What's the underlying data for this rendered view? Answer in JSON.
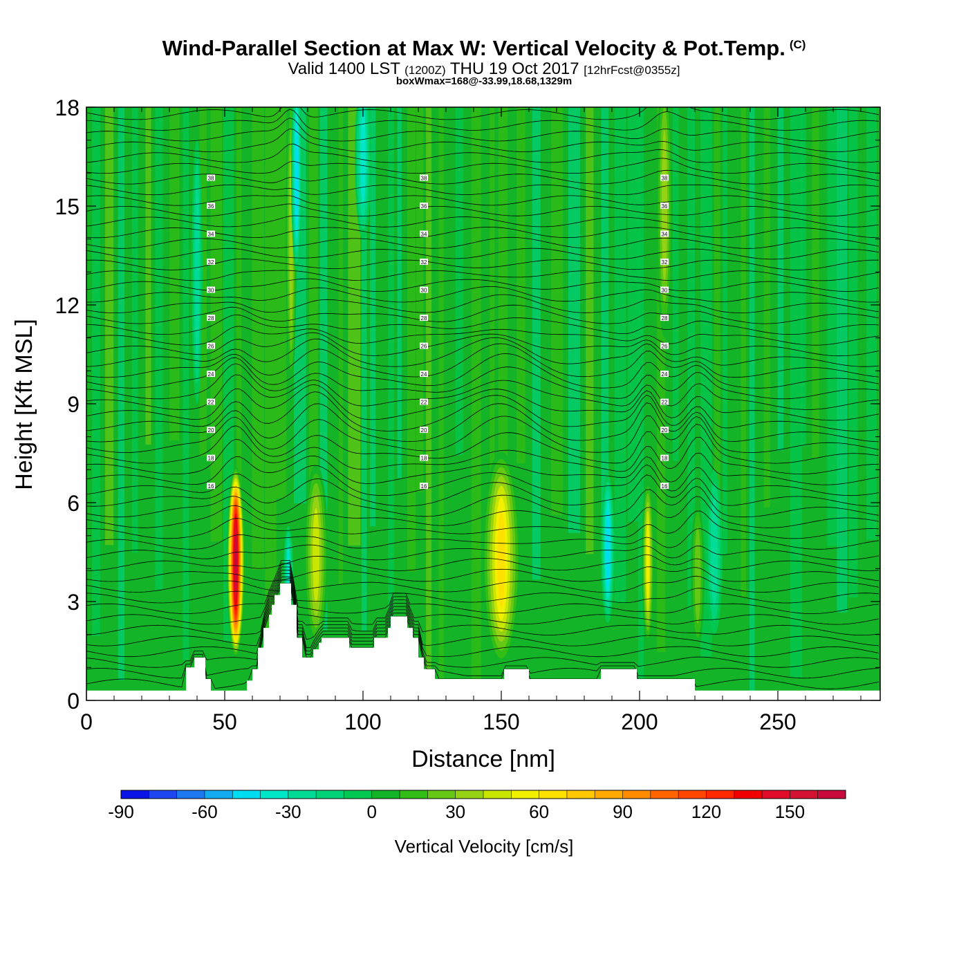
{
  "title": "Wind-Parallel Section at Max W: Vertical Velocity & Pot.Temp.",
  "copyright": "(C)",
  "subtitle_main": "Valid 1400 LST",
  "subtitle_z": "(1200Z)",
  "subtitle_date": "THU 19 Oct 2017",
  "subtitle_fcst": "[12hrFcst@0355z]",
  "subtitle2": "boxWmax=168@-33.99,18.68,1329m",
  "chart_data": {
    "type": "heatmap",
    "xlabel": "Distance [nm]",
    "ylabel": "Height [Kft MSL]",
    "xlim": [
      0,
      287
    ],
    "ylim": [
      0,
      18
    ],
    "xticks": [
      0,
      50,
      100,
      150,
      200,
      250
    ],
    "yticks": [
      0,
      3,
      6,
      9,
      12,
      15,
      18
    ],
    "colorbar": {
      "label": "Vertical Velocity [cm/s]",
      "ticks": [
        -90,
        -60,
        -30,
        0,
        30,
        60,
        90,
        120,
        150
      ],
      "min": -90,
      "max": 170,
      "step": 10,
      "colors": [
        "#0a14e6",
        "#1e46f0",
        "#1e78f0",
        "#14aaf0",
        "#00dcf0",
        "#00e6c8",
        "#00dc96",
        "#00d278",
        "#00c850",
        "#14b428",
        "#32be14",
        "#64c814",
        "#96d214",
        "#c8e600",
        "#f0f000",
        "#ffe100",
        "#ffc800",
        "#ffaa00",
        "#ff8c00",
        "#ff6400",
        "#ff4600",
        "#ff2800",
        "#f00000",
        "#e10a28",
        "#d21432",
        "#c80a3c"
      ]
    },
    "updrafts": [
      {
        "x": 54,
        "z_center": 4.2,
        "width": 3.2,
        "height": 5.8,
        "w": 168
      },
      {
        "x": 83,
        "z_center": 4.4,
        "width": 4.5,
        "height": 5.5,
        "w": 45
      },
      {
        "x": 150,
        "z_center": 4.3,
        "width": 7,
        "height": 6.5,
        "w": 62
      },
      {
        "x": 203,
        "z_center": 4.2,
        "width": 2.2,
        "height": 5,
        "w": 55
      },
      {
        "x": 221,
        "z_center": 3.8,
        "width": 2.5,
        "height": 4.5,
        "w": 30
      },
      {
        "x": 74,
        "z_center": 14,
        "width": 2,
        "height": 9,
        "w": 40
      },
      {
        "x": 209,
        "z_center": 15,
        "width": 3,
        "height": 8,
        "w": 40
      }
    ],
    "downdrafts": [
      {
        "x": 188.5,
        "z_center": 4.6,
        "width": 2.5,
        "height": 4.5,
        "w": -50
      },
      {
        "x": 73,
        "z_center": 3.8,
        "width": 1.8,
        "height": 3,
        "w": -35
      },
      {
        "x": 76,
        "z_center": 16,
        "width": 2,
        "height": 6,
        "w": -45
      },
      {
        "x": 100,
        "z_center": 16.5,
        "width": 3,
        "height": 5,
        "w": -35
      },
      {
        "x": 40,
        "z_center": 13,
        "width": 2,
        "height": 8,
        "w": -25
      },
      {
        "x": 227,
        "z_center": 4.5,
        "width": 3,
        "height": 5,
        "w": -25
      }
    ],
    "terrain_kft": [
      [
        0,
        0.3
      ],
      [
        36,
        0.3
      ],
      [
        36,
        1.0
      ],
      [
        39,
        1.0
      ],
      [
        39,
        1.3
      ],
      [
        43,
        1.3
      ],
      [
        43,
        0.65
      ],
      [
        45,
        0.65
      ],
      [
        45,
        0.3
      ],
      [
        58,
        0.3
      ],
      [
        58,
        0.6
      ],
      [
        60,
        0.6
      ],
      [
        60,
        0.95
      ],
      [
        62,
        0.95
      ],
      [
        62,
        1.6
      ],
      [
        64,
        1.6
      ],
      [
        64,
        2.2
      ],
      [
        66,
        2.2
      ],
      [
        66,
        2.6
      ],
      [
        67,
        2.6
      ],
      [
        67,
        2.9
      ],
      [
        68,
        2.9
      ],
      [
        68,
        3.2
      ],
      [
        70,
        3.2
      ],
      [
        70,
        3.55
      ],
      [
        74,
        3.55
      ],
      [
        74,
        2.9
      ],
      [
        76,
        2.9
      ],
      [
        76,
        1.9
      ],
      [
        78,
        1.9
      ],
      [
        78,
        1.3
      ],
      [
        82,
        1.3
      ],
      [
        82,
        1.55
      ],
      [
        84,
        1.55
      ],
      [
        84,
        1.75
      ],
      [
        85,
        1.75
      ],
      [
        85,
        1.9
      ],
      [
        95,
        1.9
      ],
      [
        95,
        1.6
      ],
      [
        104,
        1.6
      ],
      [
        104,
        1.9
      ],
      [
        109,
        1.9
      ],
      [
        109,
        2.2
      ],
      [
        110,
        2.2
      ],
      [
        110,
        2.55
      ],
      [
        116,
        2.55
      ],
      [
        116,
        2.2
      ],
      [
        118,
        2.2
      ],
      [
        118,
        1.9
      ],
      [
        120,
        1.9
      ],
      [
        120,
        1.3
      ],
      [
        122,
        1.3
      ],
      [
        122,
        0.95
      ],
      [
        126,
        0.95
      ],
      [
        126,
        0.65
      ],
      [
        151,
        0.65
      ],
      [
        151,
        0.95
      ],
      [
        160,
        0.95
      ],
      [
        160,
        0.65
      ],
      [
        186,
        0.65
      ],
      [
        186,
        0.95
      ],
      [
        199,
        0.95
      ],
      [
        199,
        0.65
      ],
      [
        220,
        0.65
      ],
      [
        220,
        0.3
      ],
      [
        287,
        0.3
      ]
    ],
    "theta_contour_levels": [
      16,
      18,
      20,
      22,
      24,
      26,
      28,
      30,
      32,
      34,
      36,
      38
    ],
    "theta_contour_count": 54
  }
}
